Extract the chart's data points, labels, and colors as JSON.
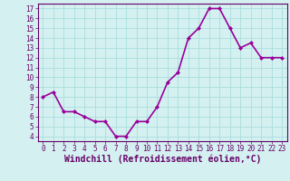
{
  "x": [
    0,
    1,
    2,
    3,
    4,
    5,
    6,
    7,
    8,
    9,
    10,
    11,
    12,
    13,
    14,
    15,
    16,
    17,
    18,
    19,
    20,
    21,
    22,
    23
  ],
  "y": [
    8.0,
    8.5,
    6.5,
    6.5,
    6.0,
    5.5,
    5.5,
    4.0,
    4.0,
    5.5,
    5.5,
    7.0,
    9.5,
    10.5,
    14.0,
    15.0,
    17.0,
    17.0,
    15.0,
    13.0,
    13.5,
    12.0,
    12.0,
    12.0
  ],
  "line_color": "#990099",
  "marker": "D",
  "marker_size": 2,
  "background_color": "#d4f0f0",
  "grid_color": "#aadddd",
  "xlabel": "Windchill (Refroidissement éolien,°C)",
  "xlabel_color": "#660066",
  "xlim": [
    -0.5,
    23.5
  ],
  "ylim": [
    3.5,
    17.5
  ],
  "yticks": [
    4,
    5,
    6,
    7,
    8,
    9,
    10,
    11,
    12,
    13,
    14,
    15,
    16,
    17
  ],
  "xticks": [
    0,
    1,
    2,
    3,
    4,
    5,
    6,
    7,
    8,
    9,
    10,
    11,
    12,
    13,
    14,
    15,
    16,
    17,
    18,
    19,
    20,
    21,
    22,
    23
  ],
  "tick_color": "#660066",
  "tick_fontsize": 5.5,
  "xlabel_fontsize": 7.0,
  "line_width": 1.2,
  "spine_color": "#660066"
}
